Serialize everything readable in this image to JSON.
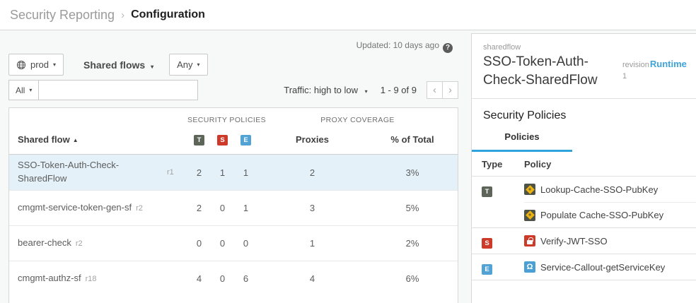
{
  "breadcrumb": {
    "parent": "Security Reporting",
    "current": "Configuration"
  },
  "toolbar": {
    "updated": "Updated: 10 days ago",
    "env_label": "prod",
    "scope_label": "Shared flows",
    "filter_label": "Any",
    "search_scope_label": "All",
    "search_value": "",
    "traffic_sort": "Traffic: high to low",
    "page_range": "1 - 9 of 9"
  },
  "icons": {
    "caret": "▾",
    "sort_asc": "▲",
    "prev": "‹",
    "next": "›",
    "help": "?",
    "breadcrumb_sep": "›",
    "omega": "Ω"
  },
  "colors": {
    "accent_blue": "#2fa3dc",
    "selected_row": "#e4f1f9",
    "badge_t": "#5d6458",
    "badge_s": "#cd3a29",
    "badge_e": "#51a3d6"
  },
  "table": {
    "group_headers": {
      "security_policies": "SECURITY POLICIES",
      "proxy_coverage": "PROXY COVERAGE"
    },
    "columns": {
      "shared_flow": "Shared flow",
      "proxies": "Proxies",
      "pct_total": "% of Total"
    },
    "badges": [
      {
        "label": "T",
        "color": "#5d6458"
      },
      {
        "label": "S",
        "color": "#cd3a29"
      },
      {
        "label": "E",
        "color": "#51a3d6"
      }
    ],
    "rows": [
      {
        "name": "SSO-Token-Auth-Check-SharedFlow",
        "revision": "r1",
        "t": "2",
        "s": "1",
        "e": "1",
        "proxies": "2",
        "pct": "3%",
        "selected": true
      },
      {
        "name": "cmgmt-service-token-gen-sf",
        "revision": "r2",
        "t": "2",
        "s": "0",
        "e": "1",
        "proxies": "3",
        "pct": "5%",
        "selected": false
      },
      {
        "name": "bearer-check",
        "revision": "r2",
        "t": "0",
        "s": "0",
        "e": "0",
        "proxies": "1",
        "pct": "2%",
        "selected": false
      },
      {
        "name": "cmgmt-authz-sf",
        "revision": "r18",
        "t": "4",
        "s": "0",
        "e": "6",
        "proxies": "4",
        "pct": "6%",
        "selected": false
      }
    ]
  },
  "detail_panel": {
    "type_label": "sharedflow",
    "title": "SSO-Token-Auth-Check-SharedFlow",
    "revision_label": "revision",
    "revision_value": "1",
    "runtime_link": "Runtime",
    "section_title": "Security Policies",
    "tab_label": "Policies",
    "policy_columns": {
      "type": "Type",
      "policy": "Policy"
    },
    "policy_groups": [
      {
        "badge": "T",
        "policies": [
          {
            "icon": "cache",
            "name": "Lookup-Cache-SSO-PubKey"
          },
          {
            "icon": "cache",
            "name": "Populate Cache-SSO-PubKey"
          }
        ]
      },
      {
        "badge": "S",
        "policies": [
          {
            "icon": "lock",
            "name": "Verify-JWT-SSO"
          }
        ]
      },
      {
        "badge": "E",
        "policies": [
          {
            "icon": "callout",
            "name": "Service-Callout-getServiceKey"
          }
        ]
      }
    ]
  }
}
